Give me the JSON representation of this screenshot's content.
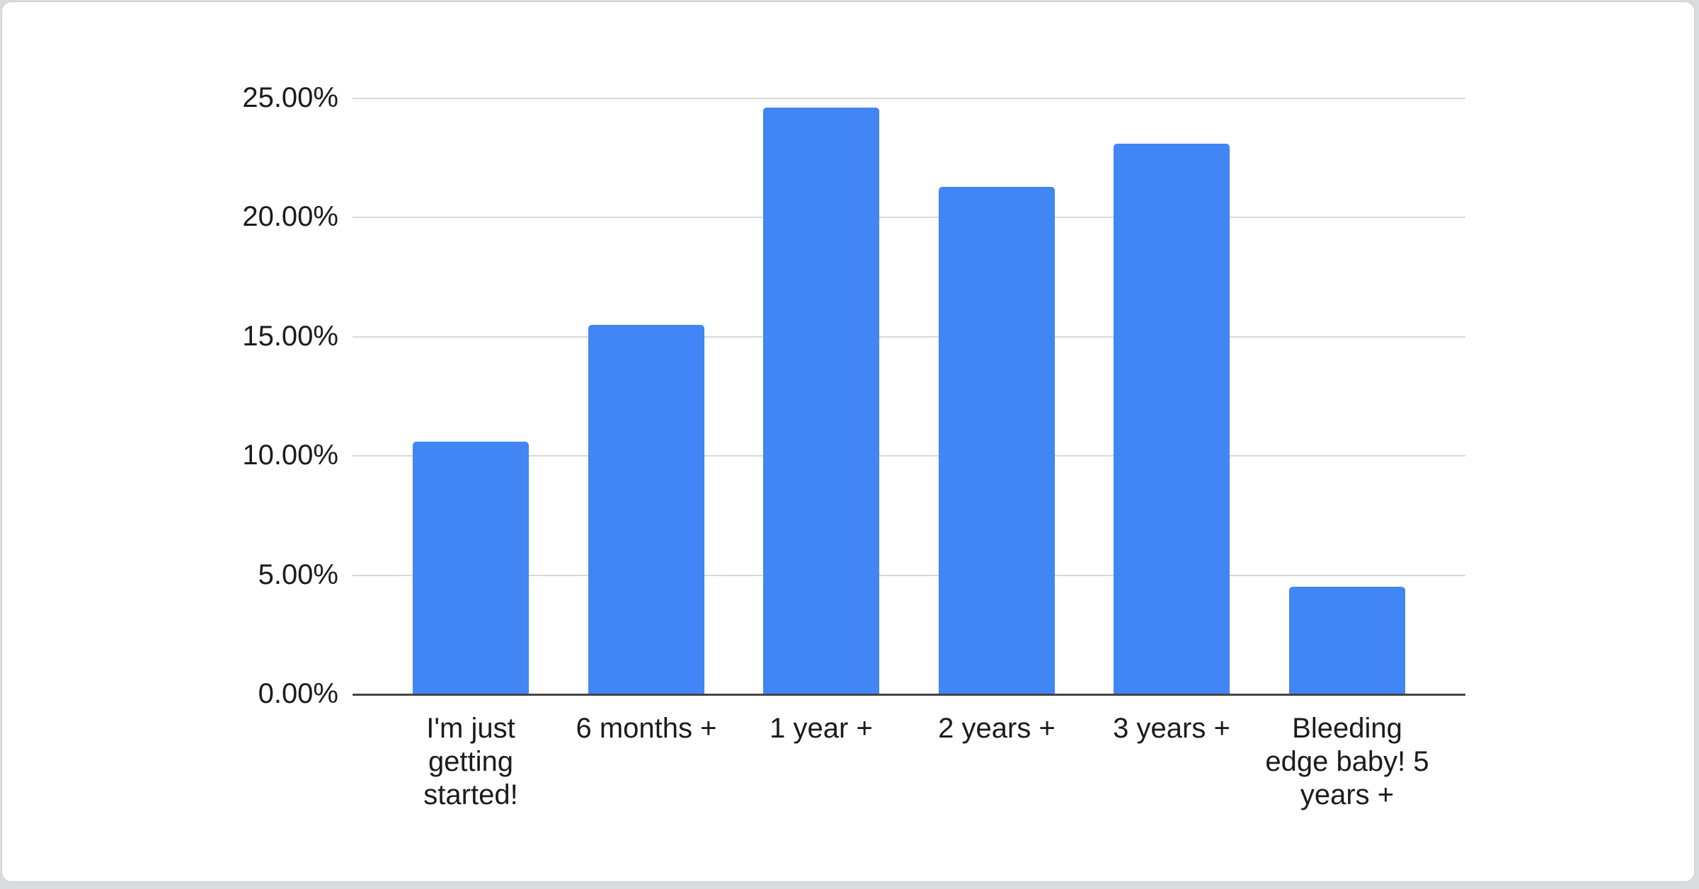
{
  "chart_data": {
    "type": "bar",
    "title": "",
    "xlabel": "",
    "ylabel": "",
    "categories": [
      "I'm just getting started!",
      "6 months +",
      "1 year +",
      "2 years +",
      "3 years +",
      "Bleeding edge baby! 5 years +"
    ],
    "values": [
      10.6,
      15.5,
      24.6,
      21.3,
      23.1,
      4.5
    ],
    "value_unit": "%",
    "ylim": [
      0,
      25
    ],
    "ytick_step": 5,
    "ytick_labels": [
      "0.00%",
      "5.00%",
      "10.00%",
      "15.00%",
      "20.00%",
      "25.00%"
    ],
    "grid": true,
    "legend_position": "none",
    "bar_color": "#4285f4"
  },
  "colors": {
    "card_background": "#ffffff",
    "page_edge": "#d9dbdf",
    "card_border": "#cdd0d4",
    "gridline": "#d8d8d8",
    "axis_baseline": "#444444",
    "axis_text": "#1b1b1b",
    "bar": "#4285f4"
  }
}
